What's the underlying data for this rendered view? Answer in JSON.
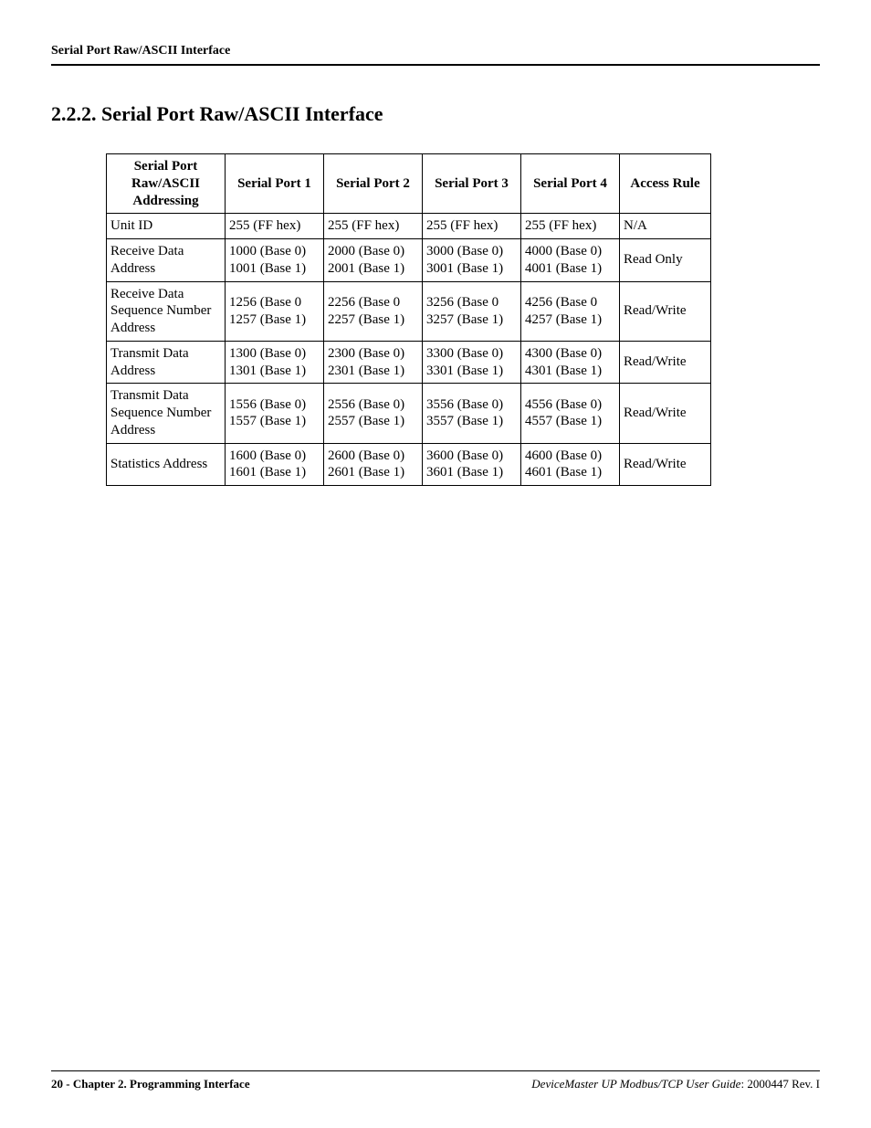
{
  "header": {
    "running_title": "Serial Port Raw/ASCII Interface"
  },
  "section": {
    "number": "2.2.2.",
    "title": "Serial Port Raw/ASCII Interface"
  },
  "table": {
    "columns": [
      "Serial Port Raw/ASCII Addressing",
      "Serial Port 1",
      "Serial Port 2",
      "Serial Port 3",
      "Serial Port 4",
      "Access Rule"
    ],
    "rows": [
      {
        "label": "Unit ID",
        "p1": "255 (FF hex)",
        "p2": "255 (FF hex)",
        "p3": "255 (FF hex)",
        "p4": "255 (FF hex)",
        "rule": "N/A"
      },
      {
        "label": "Receive Data Address",
        "p1": "1000 (Base 0)\n1001 (Base 1)",
        "p2": "2000 (Base 0)\n2001 (Base 1)",
        "p3": "3000 (Base 0)\n3001 (Base 1)",
        "p4": "4000 (Base 0)\n4001 (Base 1)",
        "rule": "Read Only"
      },
      {
        "label": "Receive Data Sequence Number Address",
        "p1": "1256 (Base 0\n1257 (Base 1)",
        "p2": "2256 (Base 0\n2257 (Base 1)",
        "p3": "3256 (Base 0\n3257 (Base 1)",
        "p4": "4256 (Base 0\n4257 (Base 1)",
        "rule": "Read/Write"
      },
      {
        "label": "Transmit Data Address",
        "p1": "1300 (Base 0)\n1301 (Base 1)",
        "p2": "2300 (Base 0)\n2301 (Base 1)",
        "p3": "3300 (Base 0)\n3301 (Base 1)",
        "p4": "4300 (Base 0)\n4301 (Base 1)",
        "rule": "Read/Write"
      },
      {
        "label": "Transmit Data Sequence Number Address",
        "p1": "1556 (Base 0)\n1557 (Base 1)",
        "p2": "2556 (Base 0)\n2557 (Base 1)",
        "p3": "3556 (Base 0)\n3557 (Base 1)",
        "p4": "4556 (Base 0)\n4557 (Base 1)",
        "rule": "Read/Write"
      },
      {
        "label": "Statistics Address",
        "p1": "1600 (Base 0)\n1601 (Base 1)",
        "p2": "2600 (Base 0)\n2601 (Base 1)",
        "p3": "3600 (Base 0)\n3601 (Base 1)",
        "p4": "4600 (Base 0)\n4601 (Base 1)",
        "rule": "Read/Write"
      }
    ]
  },
  "footer": {
    "left": "20 - Chapter 2. Programming Interface",
    "right_ital": "DeviceMaster UP Modbus/TCP User Guide",
    "right_plain": ": 2000447 Rev. I"
  }
}
